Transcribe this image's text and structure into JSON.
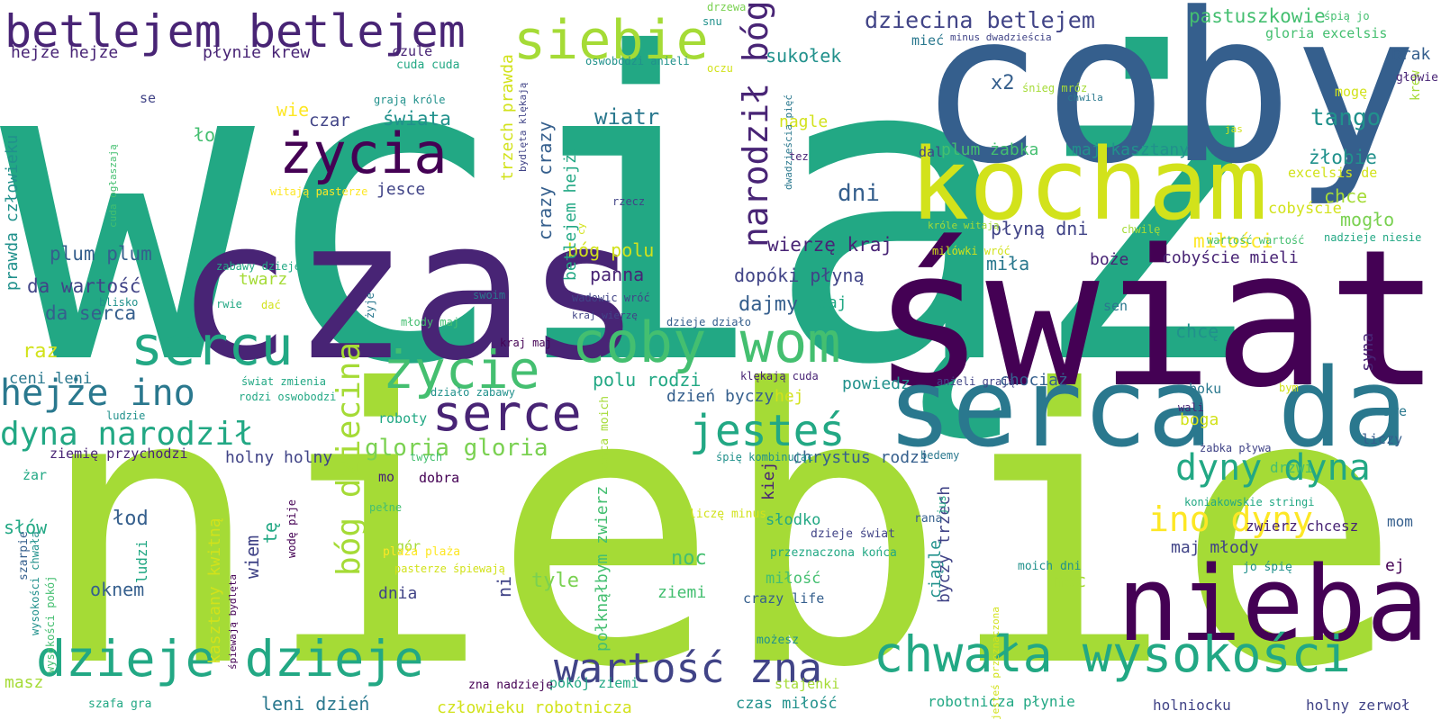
{
  "palette": [
    "#440154",
    "#482475",
    "#414487",
    "#355f8d",
    "#2a788e",
    "#21918c",
    "#22a884",
    "#44bf70",
    "#7ad151",
    "#a5db36",
    "#d2e21b",
    "#fde725"
  ],
  "words": [
    "wciąż",
    "niebie",
    "coby",
    "świat",
    "czas",
    "serca da",
    "kocham",
    "nieba",
    "betlejem betlejem",
    "siebie",
    "życia",
    "sercu",
    "serce",
    "życie",
    "coby wom",
    "dzieje dzieje",
    "chwała wysokości",
    "wartość zna",
    "jesteś",
    "hejże ino",
    "dyny dyna",
    "ino dyny",
    "dyna narodził",
    "bóg dziecina",
    "narodził bóg",
    "dziecina betlejem",
    "hejże hejże",
    "płynie krew",
    "gloria gloria",
    "pastuszkowie",
    "gloria excelsis",
    "sukołek",
    "tango",
    "wiatr",
    "świata",
    "plum plum",
    "da wartość",
    "da serca",
    "czar",
    "wie",
    "ło",
    "dni",
    "plum żabka",
    "maj kasztany",
    "płyną dni",
    "miłości",
    "cobyście mieli",
    "miła",
    "boże",
    "dopóki płyną",
    "dajmy",
    "daj",
    "panna",
    "bóg polu",
    "polu rodzi",
    "dzień byczy",
    "hej",
    "powiedz",
    "chociaż",
    "chrystus rodzi",
    "wierzę kraj",
    "x2",
    "nagle",
    "mieć",
    "żłobie",
    "chce",
    "cobyście",
    "mogło",
    "brak",
    "mogę",
    "krew",
    "głowie",
    "excelsis de",
    "raz",
    "ceni leni",
    "prawda człowieku",
    "twarz",
    "jesce",
    "trzech prawda",
    "crazy crazy",
    "betlejem hejże",
    "chcę",
    "syna",
    "boga",
    "boku",
    "swe",
    "liczy",
    "drzwi",
    "zwierz chcesz",
    "mom",
    "maj młody",
    "ej",
    "moc",
    "ciągle",
    "byczy trzech",
    "kiej",
    "połknąłbym zwierz",
    "noc",
    "tyle",
    "ziemi",
    "miłość",
    "słodko",
    "crazy life",
    "kasztany kwitną",
    "wiem",
    "tę",
    "łod",
    "słów",
    "ludzi",
    "oknem",
    "ni",
    "dnia",
    "gór",
    "mo",
    "dobra",
    "ziemię przychodzi",
    "holny holny",
    "żar",
    "roboty",
    "masz",
    "leni dzień",
    "człowieku robotnicza",
    "czas miłość",
    "robotnicza płynie",
    "holniocku",
    "holny zerwoł",
    "pokój ziemi",
    "stajenki",
    "zna nadzieje",
    "szafa gra",
    "możesz",
    "sen",
    "czule",
    "cuda cuda",
    "se",
    "snu",
    "drzewa",
    "oczu",
    "oswobodzi anieli",
    "tez",
    "śnieg mróz",
    "minus dwadzieścia",
    "śpią jo",
    "chwila",
    "jas",
    "dal",
    "rzecz",
    "witają pasterze",
    "grają króle",
    "cuda ogłaszają",
    "bydlęta klękają",
    "dwadzieścia pięć",
    "cy",
    "zabawy dzieje",
    "blisko",
    "rwie",
    "dać",
    "swoim",
    "wadowic wróć",
    "kraj wierzę",
    "dzieje działo",
    "młody maj",
    "kraj maj",
    "nadzieje niesie",
    "klękają cuda",
    "anieli grają",
    "świat zmienia",
    "rodzi oswobodzi",
    "działo zabawy",
    "ludzie",
    "śpię kombinując",
    "bedemy",
    "wali",
    "bym",
    "żabka pływa",
    "koniakowskie stringi",
    "moich dni",
    "jo śpię",
    "liczę minus",
    "dzieje świat",
    "przeznaczona końca",
    "jus",
    "rana",
    "jesteś przeznaczona",
    "końca moich",
    "śpiewają bydlęta",
    "wodę pije",
    "pełne",
    "twych",
    "plaża plaża",
    "pasterze śpiewają",
    "wysokości pokój",
    "wysokości chwała",
    "szarpie",
    "żyje",
    "króle witają",
    "milówki wróć",
    "chwilę",
    "wartość wartość"
  ]
}
